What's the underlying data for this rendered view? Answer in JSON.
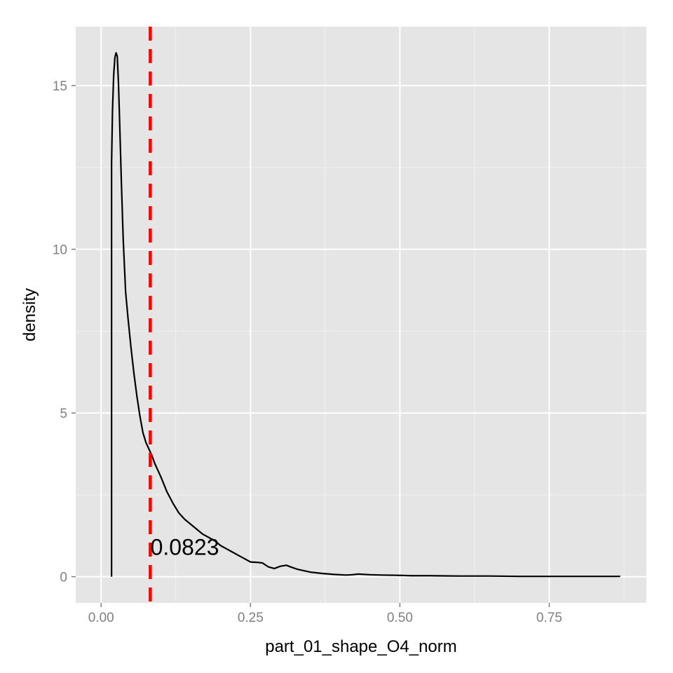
{
  "chart_data": {
    "type": "line",
    "title": "",
    "xlabel": "part_01_shape_O4_norm",
    "ylabel": "density",
    "xlim": [
      -0.0425,
      0.9125
    ],
    "ylim": [
      -0.8,
      16.8
    ],
    "x_ticks": [
      0.0,
      0.25,
      0.5,
      0.75
    ],
    "x_tick_labels": [
      "0.00",
      "0.25",
      "0.50",
      "0.75"
    ],
    "y_ticks": [
      0,
      5,
      10,
      15
    ],
    "y_tick_labels": [
      "0",
      "5",
      "10",
      "15"
    ],
    "grid": true,
    "legend": "none",
    "reference_line": {
      "x": 0.0823,
      "color": "#ff0000",
      "style": "dashed"
    },
    "annotation": {
      "text": "0.0823",
      "x": 0.14,
      "y": 0.9
    },
    "series": [
      {
        "x": [
          0.0175,
          0.0175,
          0.019,
          0.021,
          0.023,
          0.025,
          0.027,
          0.029,
          0.031,
          0.034,
          0.037,
          0.041,
          0.045,
          0.05,
          0.055,
          0.06,
          0.065,
          0.07,
          0.075,
          0.08,
          0.085,
          0.09,
          0.095,
          0.1,
          0.11,
          0.12,
          0.13,
          0.14,
          0.15,
          0.16,
          0.17,
          0.18,
          0.19,
          0.2,
          0.21,
          0.22,
          0.23,
          0.24,
          0.25,
          0.26,
          0.27,
          0.28,
          0.29,
          0.3,
          0.31,
          0.32,
          0.33,
          0.34,
          0.35,
          0.37,
          0.39,
          0.41,
          0.42,
          0.43,
          0.45,
          0.47,
          0.5,
          0.52,
          0.55,
          0.6,
          0.65,
          0.7,
          0.75,
          0.8,
          0.868,
          0.868
        ],
        "y": [
          0,
          12.6,
          14.2,
          15.3,
          15.85,
          16.0,
          15.9,
          15.1,
          13.9,
          12.0,
          10.3,
          8.7,
          7.9,
          7.0,
          6.2,
          5.5,
          4.9,
          4.4,
          4.1,
          3.9,
          3.7,
          3.45,
          3.25,
          3.05,
          2.6,
          2.25,
          1.95,
          1.75,
          1.6,
          1.45,
          1.3,
          1.2,
          1.1,
          0.95,
          0.85,
          0.75,
          0.65,
          0.55,
          0.45,
          0.44,
          0.42,
          0.3,
          0.25,
          0.32,
          0.35,
          0.28,
          0.22,
          0.18,
          0.14,
          0.1,
          0.07,
          0.05,
          0.06,
          0.08,
          0.06,
          0.05,
          0.04,
          0.03,
          0.03,
          0.02,
          0.02,
          0.01,
          0.01,
          0.01,
          0.01,
          0
        ]
      }
    ]
  }
}
